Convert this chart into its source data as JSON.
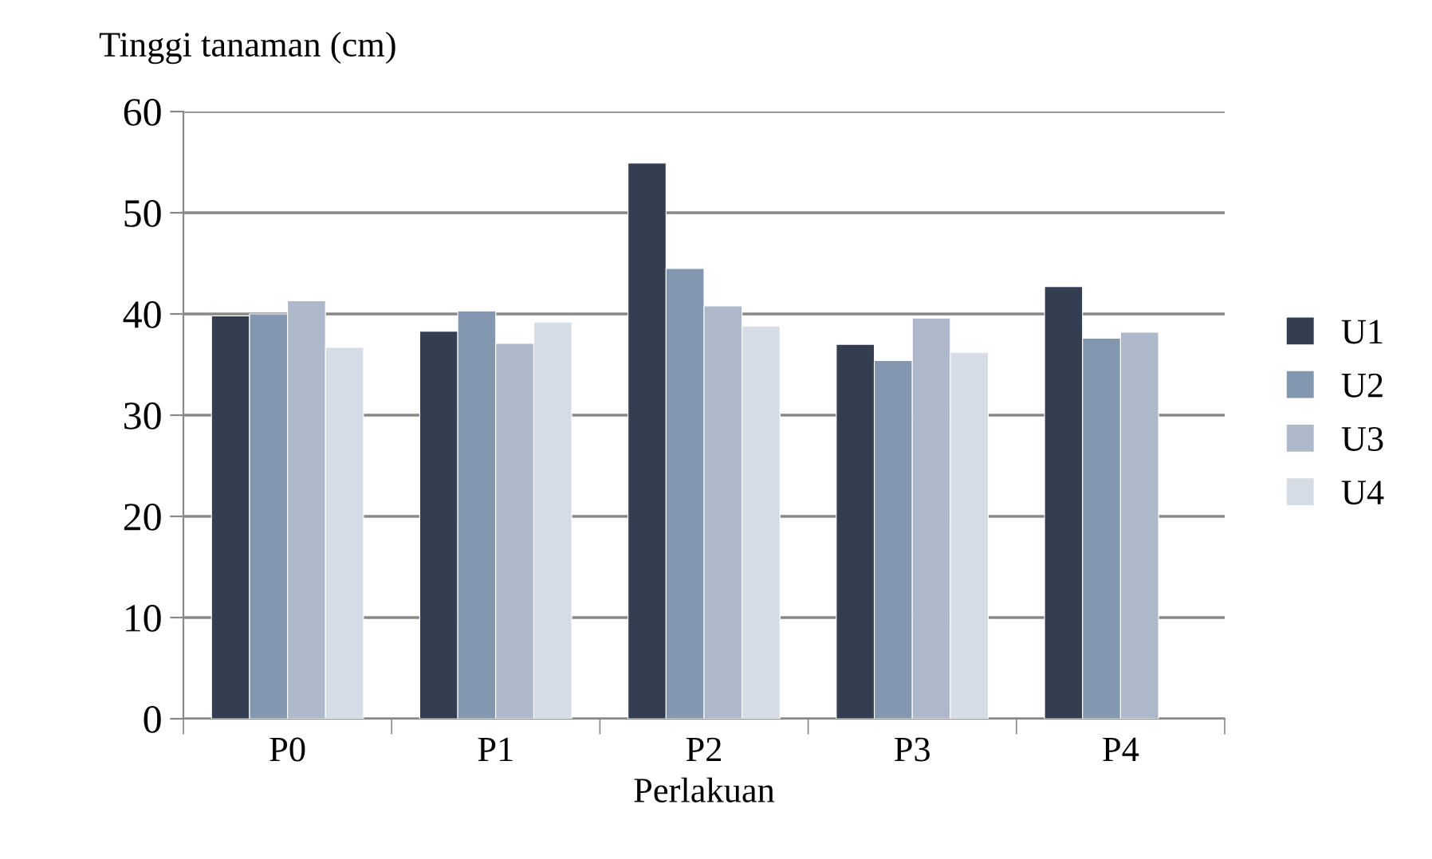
{
  "chart_data": {
    "type": "bar",
    "ylabel": "Tinggi tanaman (cm)",
    "xlabel": "Perlakuan",
    "categories": [
      "P0",
      "P1",
      "P2",
      "P3",
      "P4"
    ],
    "series": [
      {
        "name": "U1",
        "color": "#333e50",
        "values": [
          39.8,
          38.3,
          54.9,
          37.0,
          42.7
        ]
      },
      {
        "name": "U2",
        "color": "#8497b0",
        "values": [
          40.0,
          40.3,
          44.5,
          35.4,
          37.6
        ]
      },
      {
        "name": "U3",
        "color": "#adb9ca",
        "values": [
          41.3,
          37.1,
          40.8,
          39.6,
          38.2
        ]
      },
      {
        "name": "U4",
        "color": "#d6dce5",
        "values": [
          36.7,
          39.2,
          38.8,
          36.2,
          null
        ]
      }
    ],
    "ylim": [
      0,
      60
    ],
    "yticks": [
      0,
      10,
      20,
      30,
      40,
      50,
      60
    ],
    "grid": "y",
    "legend": "right"
  }
}
